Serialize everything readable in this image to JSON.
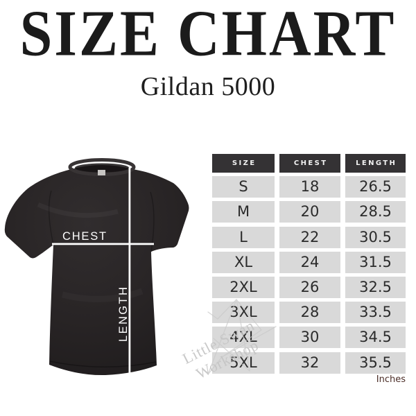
{
  "title": "SIZE CHART",
  "subtitle": "Gildan 5000",
  "unit_note": "Inches",
  "shirt_diagram": {
    "chest_label": "CHEST",
    "length_label": "LENGTH"
  },
  "watermark": {
    "line1": "Little Swan",
    "line2": "Workshop",
    "icon": "origami-swan-line-art"
  },
  "colors": {
    "background": "#ffffff",
    "title_text": "#1b1b1b",
    "table_header_bg": "#343234",
    "table_header_text": "#f2f2f2",
    "table_cell_bg": "#d9d9d9",
    "table_cell_text": "#2b2b2b",
    "inches_text": "#4b2d27",
    "measurement_line": "#ffffff",
    "shirt_fabric": "#272324",
    "watermark_text": "#c4c4c4"
  },
  "chart_data": {
    "type": "table",
    "title": "SIZE CHART",
    "subtitle": "Gildan 5000",
    "units": "Inches",
    "columns": [
      "SIZE",
      "CHEST",
      "LENGTH"
    ],
    "rows": [
      [
        "S",
        "18",
        "26.5"
      ],
      [
        "M",
        "20",
        "28.5"
      ],
      [
        "L",
        "22",
        "30.5"
      ],
      [
        "XL",
        "24",
        "31.5"
      ],
      [
        "2XL",
        "26",
        "32.5"
      ],
      [
        "3XL",
        "28",
        "33.5"
      ],
      [
        "4XL",
        "30",
        "34.5"
      ],
      [
        "5XL",
        "32",
        "35.5"
      ]
    ]
  }
}
